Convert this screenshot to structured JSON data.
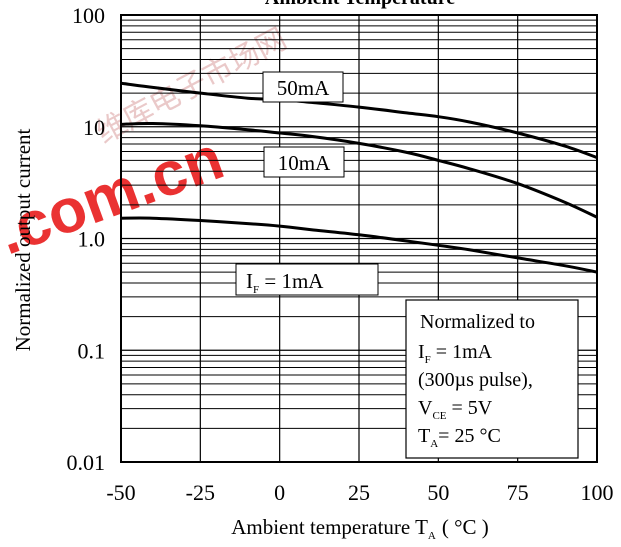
{
  "chart_data": {
    "type": "line",
    "title": "Ambient Temperature",
    "xlabel": "Ambient temperature T",
    "xlabel_sub": "A",
    "xlabel_unit": "( °C )",
    "ylabel": "Normalized output current",
    "xlim": [
      -50,
      100
    ],
    "ylim": [
      0.01,
      100
    ],
    "yscale": "log",
    "x_ticks": [
      "-50",
      "-25",
      "0",
      "25",
      "50",
      "75",
      "100"
    ],
    "y_ticks": [
      "100",
      "10",
      "1.0",
      "0.1",
      "0.01"
    ],
    "grid": true,
    "series": [
      {
        "name": "50mA",
        "label_main": "50mA",
        "x": [
          -50,
          -40,
          -25,
          -10,
          0,
          10,
          25,
          40,
          50,
          60,
          75,
          90,
          100
        ],
        "y": [
          24.5,
          22.5,
          20,
          18,
          17.5,
          16.5,
          15,
          13.3,
          12.3,
          11,
          8.8,
          6.7,
          5.3
        ]
      },
      {
        "name": "10mA",
        "label_main": "10mA",
        "x": [
          -50,
          -40,
          -25,
          -10,
          0,
          10,
          25,
          40,
          50,
          60,
          75,
          90,
          100
        ],
        "y": [
          10.5,
          10.7,
          10.2,
          9.4,
          8.8,
          8.2,
          7.1,
          5.9,
          5,
          4.2,
          3.1,
          2.1,
          1.55
        ]
      },
      {
        "name": "I_F = 1mA",
        "label_main": "I",
        "label_sub": "F",
        "label_rest": " = 1mA",
        "x": [
          -50,
          -40,
          -25,
          -10,
          0,
          10,
          25,
          40,
          50,
          60,
          75,
          90,
          100
        ],
        "y": [
          1.52,
          1.52,
          1.45,
          1.36,
          1.29,
          1.2,
          1.08,
          0.95,
          0.87,
          0.79,
          0.67,
          0.57,
          0.5
        ]
      }
    ],
    "annotation": {
      "line1": "Normalized to",
      "line2_main": "I",
      "line2_sub": "F",
      "line2_rest": " = 1mA",
      "line3": "(300µs pulse),",
      "line4_main": "V",
      "line4_sub": "CE",
      "line4_rest": " = 5V",
      "line5_main": "T",
      "line5_sub": "A",
      "line5_rest": "= 25 °C"
    }
  },
  "watermark": {
    "text": ".com.cn",
    "color": "#ee1111",
    "faint_text": "维库电子市场网"
  }
}
